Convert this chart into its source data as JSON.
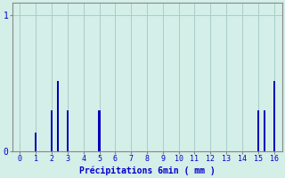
{
  "xlabel": "Précipitations 6min ( mm )",
  "background_color": "#d4eee8",
  "bar_color": "#0000bb",
  "grid_color": "#aaccc8",
  "axis_color": "#888888",
  "text_color": "#0000cc",
  "xlim": [
    -0.5,
    16.5
  ],
  "ylim": [
    0,
    1.09
  ],
  "xticks": [
    0,
    1,
    2,
    3,
    4,
    5,
    6,
    7,
    8,
    9,
    10,
    11,
    12,
    13,
    14,
    15,
    16
  ],
  "yticks": [
    0,
    1
  ],
  "bar_positions": [
    1.0,
    2.0,
    2.4,
    3.0,
    5.0,
    15.0,
    15.4,
    16.0
  ],
  "bar_heights": [
    0.14,
    0.3,
    0.52,
    0.3,
    0.3,
    0.3,
    0.3,
    0.52
  ],
  "bar_width": 0.12
}
